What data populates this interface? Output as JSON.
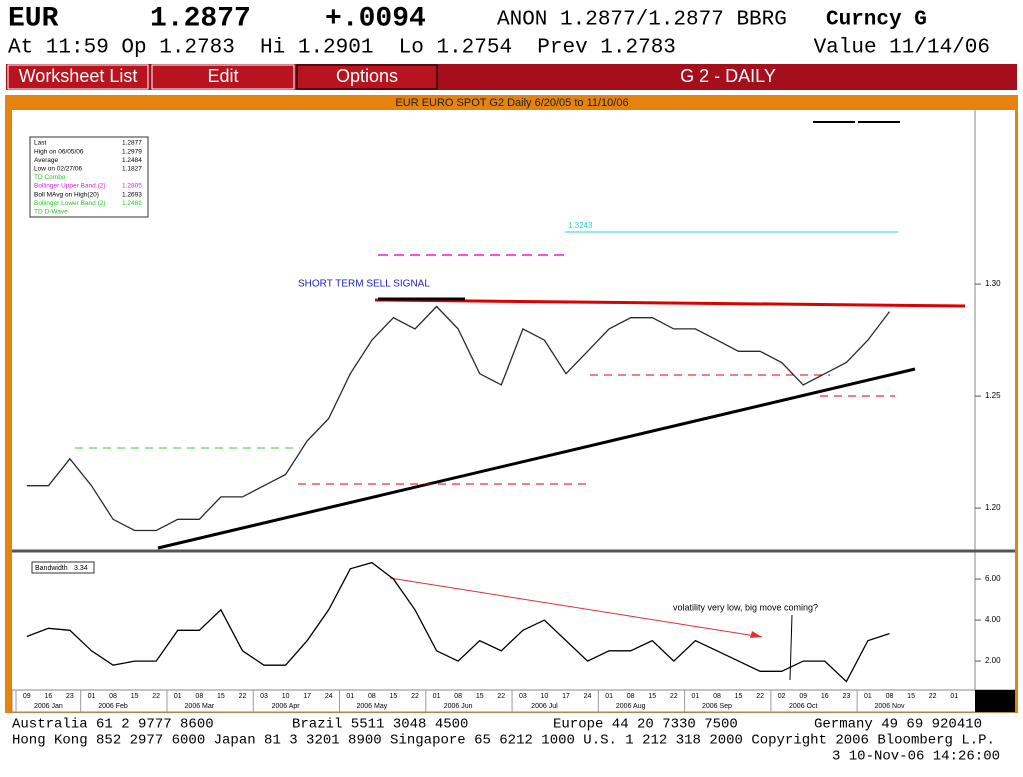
{
  "header": {
    "ticker": "EUR",
    "price": "1.2877",
    "change": "+.0094",
    "quote": "ANON 1.2877/1.2877 BBRG",
    "market": "Curncy G",
    "line2": "At 11:59 Op 1.2783  Hi 1.2901  Lo 1.2754  Prev 1.2783",
    "value_date": "Value 11/14/06"
  },
  "menu": {
    "items": [
      "Worksheet List",
      "Edit",
      "Options"
    ],
    "screen": "G 2 - DAILY"
  },
  "legend_box": {
    "rows": [
      [
        "Last",
        "1.2877"
      ],
      [
        "High on  06/05/06",
        "1.2979"
      ],
      [
        "Average",
        "1.2484"
      ],
      [
        "Low on  02/27/06",
        "1.1827"
      ],
      [
        "TD Combo",
        ""
      ],
      [
        "Bollinger Upper Band (2)",
        "1.2805"
      ],
      [
        "Boll MAvg on High(20)",
        "1.2693"
      ],
      [
        "Bollinger Lower Band (2)",
        "1.2482"
      ],
      [
        "TD D-Wave",
        ""
      ]
    ]
  },
  "chart_data": [
    {
      "type": "line",
      "title": "EUR EURO SPOT G2 Daily 6/20/05 to 11/10/06",
      "color": "#2a2a2a",
      "categories": [
        "09",
        "16",
        "23",
        "01",
        "08",
        "15",
        "22",
        "01",
        "08",
        "15",
        "22",
        "03",
        "10",
        "17",
        "24",
        "01",
        "08",
        "15",
        "22",
        "01",
        "08",
        "15",
        "22",
        "03",
        "10",
        "17",
        "24",
        "01",
        "08",
        "15",
        "22",
        "01",
        "08",
        "15",
        "22",
        "02",
        "09",
        "16",
        "23",
        "01",
        "08",
        "15",
        "22",
        "01"
      ],
      "month_labels": [
        "2006 Jan",
        "2006 Feb",
        "2006 Mar",
        "2006 Apr",
        "2006 May",
        "2006 Jun",
        "2006 Jul",
        "2006 Aug",
        "2006 Sep",
        "2006 Oct",
        "2006 Nov"
      ],
      "values": [
        1.21,
        1.21,
        1.222,
        1.21,
        1.195,
        1.19,
        1.19,
        1.195,
        1.195,
        1.205,
        1.205,
        1.21,
        1.215,
        1.23,
        1.24,
        1.26,
        1.275,
        1.285,
        1.28,
        1.29,
        1.28,
        1.26,
        1.255,
        1.28,
        1.275,
        1.26,
        1.27,
        1.28,
        1.285,
        1.285,
        1.28,
        1.28,
        1.275,
        1.27,
        1.27,
        1.265,
        1.255,
        1.26,
        1.265,
        1.275,
        1.2877,
        null,
        null,
        null
      ],
      "ylim": [
        1.1813,
        1.3777
      ],
      "yticks": [
        {
          "value": 1.2,
          "label": "1.20"
        },
        1.25,
        {
          "value": 1.3,
          "label": "1.30"
        }
      ],
      "annotations": [
        "SHORT TERM SELL SIGNAL",
        "1.3243"
      ]
    },
    {
      "type": "line",
      "title": "Bandwidth",
      "last_label": "3.34",
      "color": "#000000",
      "values": [
        3.2,
        3.6,
        3.5,
        2.5,
        1.8,
        2.0,
        2.0,
        3.5,
        3.5,
        4.5,
        2.5,
        1.8,
        1.8,
        3.0,
        4.5,
        6.5,
        6.8,
        6.0,
        4.5,
        2.5,
        2.0,
        3.0,
        2.5,
        3.5,
        4.0,
        3.0,
        2.0,
        2.5,
        2.5,
        3.0,
        2.0,
        3.0,
        2.5,
        2.0,
        1.5,
        1.5,
        2.0,
        2.0,
        1.0,
        3.0,
        3.34,
        null,
        null,
        null
      ],
      "ylim": [
        0.59,
        7.27
      ],
      "yticks": [
        {
          "value": 2,
          "label": "2.00"
        },
        {
          "value": 4,
          "label": "4.00"
        },
        {
          "value": 6,
          "label": "6.00"
        }
      ],
      "annotations": [
        "volatility very low, big move coming?"
      ]
    }
  ],
  "footer": {
    "line1": [
      "Australia 61 2 9777 8600",
      "Brazil 5511 3048 4500",
      "Europe 44 20 7330 7500",
      "Germany 49 69 920410"
    ],
    "line2": "Hong Kong 852 2977 6000 Japan 81 3 3201 8900 Singapore 65 6212 1000 U.S. 1 212 318 2000 Copyright 2006 Bloomberg L.P.",
    "line3": "3 10-Nov-06 14:26:00"
  }
}
